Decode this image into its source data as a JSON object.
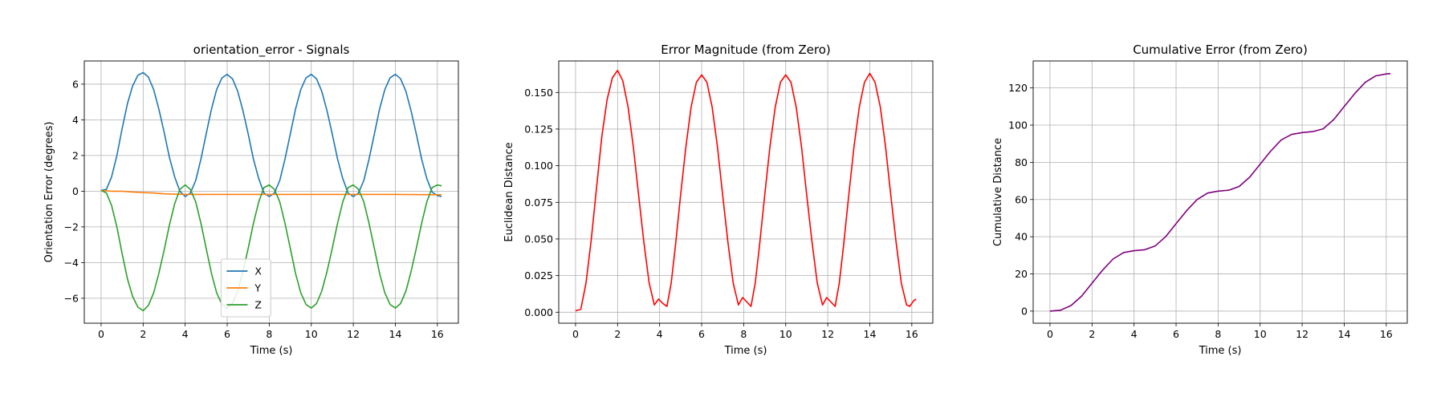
{
  "chart_data": [
    {
      "type": "line",
      "title": "orientation_error - Signals",
      "xlabel": "Time (s)",
      "ylabel": "Orientation Error (degrees)",
      "xlim": [
        -0.8,
        17.0
      ],
      "ylim": [
        -7.4,
        7.3
      ],
      "xticks": [
        0,
        2,
        4,
        6,
        8,
        10,
        12,
        14,
        16
      ],
      "yticks": [
        -6,
        -4,
        -2,
        0,
        2,
        4,
        6
      ],
      "grid": true,
      "legend": "lower-center",
      "series": [
        {
          "name": "X",
          "color": "#1f77b4",
          "x": [
            0,
            0.25,
            0.5,
            0.75,
            1,
            1.25,
            1.5,
            1.75,
            2,
            2.25,
            2.5,
            2.75,
            3,
            3.25,
            3.5,
            3.75,
            4,
            4.25,
            4.5,
            4.75,
            5,
            5.25,
            5.5,
            5.75,
            6,
            6.25,
            6.5,
            6.75,
            7,
            7.25,
            7.5,
            7.75,
            8,
            8.25,
            8.5,
            8.75,
            9,
            9.25,
            9.5,
            9.75,
            10,
            10.25,
            10.5,
            10.75,
            11,
            11.25,
            11.5,
            11.75,
            12,
            12.25,
            12.5,
            12.75,
            13,
            13.25,
            13.5,
            13.75,
            14,
            14.25,
            14.5,
            14.75,
            15,
            15.25,
            15.5,
            15.75,
            16,
            16.2
          ],
          "y": [
            0.05,
            0.1,
            0.8,
            2.0,
            3.5,
            4.9,
            5.9,
            6.5,
            6.65,
            6.4,
            5.7,
            4.6,
            3.3,
            1.9,
            0.8,
            0.0,
            -0.3,
            -0.1,
            0.6,
            1.8,
            3.2,
            4.6,
            5.7,
            6.35,
            6.55,
            6.3,
            5.6,
            4.5,
            3.2,
            1.8,
            0.7,
            -0.1,
            -0.3,
            -0.1,
            0.6,
            1.8,
            3.2,
            4.6,
            5.7,
            6.35,
            6.55,
            6.3,
            5.6,
            4.5,
            3.2,
            1.8,
            0.7,
            -0.1,
            -0.3,
            -0.1,
            0.6,
            1.8,
            3.2,
            4.6,
            5.7,
            6.35,
            6.55,
            6.3,
            5.6,
            4.5,
            3.2,
            1.8,
            0.7,
            -0.05,
            -0.25,
            -0.3
          ]
        },
        {
          "name": "Y",
          "color": "#ff7f0e",
          "x": [
            0,
            0.5,
            1,
            1.5,
            2,
            2.5,
            3,
            4,
            6,
            8,
            10,
            12,
            14,
            16,
            16.2
          ],
          "y": [
            0.05,
            0.0,
            0.0,
            -0.05,
            -0.08,
            -0.1,
            -0.15,
            -0.18,
            -0.18,
            -0.18,
            -0.18,
            -0.18,
            -0.18,
            -0.2,
            -0.2
          ]
        },
        {
          "name": "Z",
          "color": "#2ca02c",
          "x": [
            0,
            0.25,
            0.5,
            0.75,
            1,
            1.25,
            1.5,
            1.75,
            2,
            2.25,
            2.5,
            2.75,
            3,
            3.25,
            3.5,
            3.75,
            4,
            4.25,
            4.5,
            4.75,
            5,
            5.25,
            5.5,
            5.75,
            6,
            6.25,
            6.5,
            6.75,
            7,
            7.25,
            7.5,
            7.75,
            8,
            8.25,
            8.5,
            8.75,
            9,
            9.25,
            9.5,
            9.75,
            10,
            10.25,
            10.5,
            10.75,
            11,
            11.25,
            11.5,
            11.75,
            12,
            12.25,
            12.5,
            12.75,
            13,
            13.25,
            13.5,
            13.75,
            14,
            14.25,
            14.5,
            14.75,
            15,
            15.25,
            15.5,
            15.75,
            16,
            16.2
          ],
          "y": [
            0.05,
            -0.1,
            -0.8,
            -2.0,
            -3.5,
            -4.9,
            -5.9,
            -6.5,
            -6.7,
            -6.4,
            -5.7,
            -4.6,
            -3.3,
            -1.9,
            -0.7,
            0.1,
            0.35,
            0.1,
            -0.6,
            -1.8,
            -3.2,
            -4.6,
            -5.7,
            -6.35,
            -6.55,
            -6.3,
            -5.6,
            -4.5,
            -3.2,
            -1.8,
            -0.6,
            0.2,
            0.35,
            0.1,
            -0.6,
            -1.8,
            -3.2,
            -4.6,
            -5.7,
            -6.35,
            -6.55,
            -6.3,
            -5.6,
            -4.5,
            -3.2,
            -1.8,
            -0.6,
            0.2,
            0.35,
            0.1,
            -0.6,
            -1.8,
            -3.2,
            -4.6,
            -5.7,
            -6.35,
            -6.55,
            -6.3,
            -5.6,
            -4.5,
            -3.2,
            -1.8,
            -0.6,
            0.2,
            0.35,
            0.3
          ]
        }
      ]
    },
    {
      "type": "line",
      "title": "Error Magnitude (from Zero)",
      "xlabel": "Time (s)",
      "ylabel": "Euclidean Distance",
      "xlim": [
        -0.8,
        17.0
      ],
      "ylim": [
        -0.0075,
        0.1715
      ],
      "xticks": [
        0,
        2,
        4,
        6,
        8,
        10,
        12,
        14,
        16
      ],
      "yticks": [
        0.0,
        0.025,
        0.05,
        0.075,
        0.1,
        0.125,
        0.15
      ],
      "ytick_labels": [
        "0.000",
        "0.025",
        "0.050",
        "0.075",
        "0.100",
        "0.125",
        "0.150"
      ],
      "grid": true,
      "series": [
        {
          "color": "#ff0000",
          "x": [
            0,
            0.25,
            0.5,
            0.75,
            1,
            1.25,
            1.5,
            1.75,
            2,
            2.25,
            2.5,
            2.75,
            3,
            3.25,
            3.5,
            3.75,
            3.95,
            4.15,
            4.35,
            4.55,
            4.75,
            5,
            5.25,
            5.5,
            5.75,
            6,
            6.25,
            6.5,
            6.75,
            7,
            7.25,
            7.5,
            7.75,
            7.95,
            8.15,
            8.35,
            8.55,
            8.75,
            9,
            9.25,
            9.5,
            9.75,
            10,
            10.25,
            10.5,
            10.75,
            11,
            11.25,
            11.5,
            11.75,
            11.95,
            12.15,
            12.35,
            12.55,
            12.75,
            13,
            13.25,
            13.5,
            13.75,
            14,
            14.25,
            14.5,
            14.75,
            15,
            15.25,
            15.5,
            15.75,
            15.9,
            16.1,
            16.2
          ],
          "y": [
            0.001,
            0.002,
            0.02,
            0.05,
            0.085,
            0.12,
            0.145,
            0.16,
            0.165,
            0.158,
            0.14,
            0.113,
            0.08,
            0.048,
            0.02,
            0.005,
            0.009,
            0.006,
            0.004,
            0.02,
            0.045,
            0.08,
            0.113,
            0.14,
            0.157,
            0.162,
            0.157,
            0.14,
            0.113,
            0.08,
            0.048,
            0.02,
            0.005,
            0.01,
            0.007,
            0.004,
            0.02,
            0.045,
            0.08,
            0.113,
            0.14,
            0.157,
            0.162,
            0.157,
            0.14,
            0.113,
            0.08,
            0.048,
            0.02,
            0.005,
            0.01,
            0.007,
            0.004,
            0.02,
            0.045,
            0.08,
            0.113,
            0.14,
            0.157,
            0.163,
            0.157,
            0.14,
            0.113,
            0.08,
            0.048,
            0.02,
            0.005,
            0.004,
            0.008,
            0.009
          ]
        }
      ]
    },
    {
      "type": "line",
      "title": "Cumulative Error (from Zero)",
      "xlabel": "Time (s)",
      "ylabel": "Cumulative Distance",
      "xlim": [
        -0.8,
        17.0
      ],
      "ylim": [
        -6.5,
        134.5
      ],
      "xticks": [
        0,
        2,
        4,
        6,
        8,
        10,
        12,
        14,
        16
      ],
      "yticks": [
        0,
        20,
        40,
        60,
        80,
        100,
        120
      ],
      "grid": true,
      "series": [
        {
          "color": "#800080",
          "x": [
            0,
            0.5,
            1,
            1.5,
            2,
            2.5,
            3,
            3.5,
            4,
            4.5,
            5,
            5.5,
            6,
            6.5,
            7,
            7.5,
            8,
            8.5,
            9,
            9.5,
            10,
            10.5,
            11,
            11.5,
            12,
            12.5,
            13,
            13.5,
            14,
            14.5,
            15,
            15.5,
            16,
            16.2
          ],
          "y": [
            0,
            0.5,
            3,
            8,
            15,
            22,
            28,
            31.5,
            32.5,
            33,
            35,
            40,
            47,
            54,
            60,
            63.5,
            64.5,
            65,
            67,
            72,
            79,
            86,
            92,
            95,
            96,
            96.5,
            98,
            103,
            110,
            117,
            123,
            126.5,
            127.5,
            127.7
          ]
        }
      ]
    }
  ]
}
